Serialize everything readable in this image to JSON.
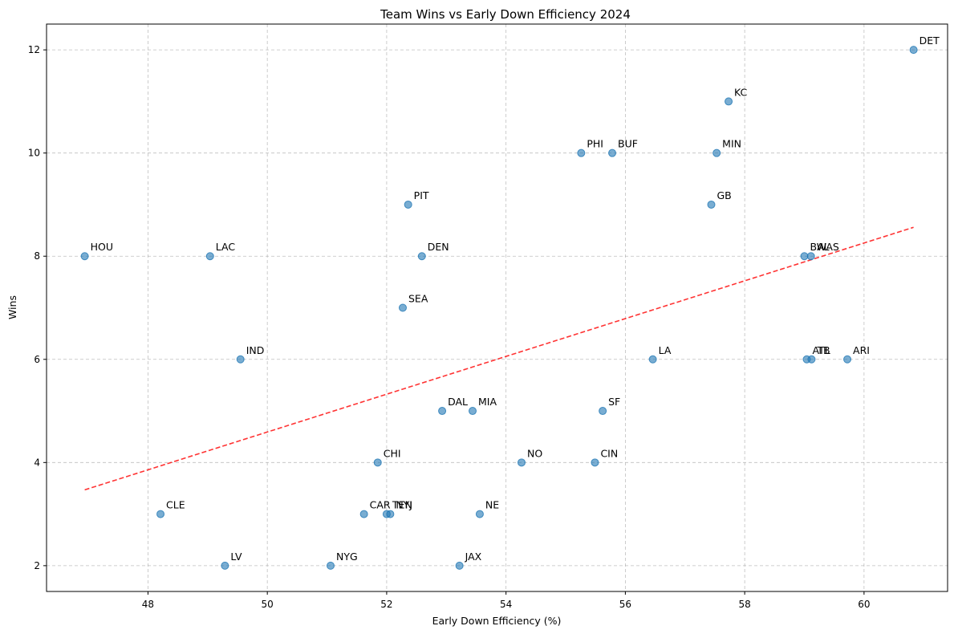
{
  "chart_data": {
    "type": "scatter",
    "title": "Team Wins vs Early Down Efficiency 2024",
    "xlabel": "Early Down Efficiency (%)",
    "ylabel": "Wins",
    "xlim": [
      46.3,
      61.4
    ],
    "ylim": [
      1.5,
      12.5
    ],
    "xticks": [
      48,
      50,
      52,
      54,
      56,
      58,
      60
    ],
    "yticks": [
      2,
      4,
      6,
      8,
      10,
      12
    ],
    "grid": true,
    "points": [
      {
        "team": "DET",
        "x": 60.83,
        "y": 12
      },
      {
        "team": "KC",
        "x": 57.73,
        "y": 11
      },
      {
        "team": "PHI",
        "x": 55.26,
        "y": 10
      },
      {
        "team": "BUF",
        "x": 55.78,
        "y": 10
      },
      {
        "team": "MIN",
        "x": 57.53,
        "y": 10
      },
      {
        "team": "PIT",
        "x": 52.36,
        "y": 9
      },
      {
        "team": "GB",
        "x": 57.44,
        "y": 9
      },
      {
        "team": "HOU",
        "x": 46.94,
        "y": 8
      },
      {
        "team": "LAC",
        "x": 49.04,
        "y": 8
      },
      {
        "team": "DEN",
        "x": 52.59,
        "y": 8
      },
      {
        "team": "BAL",
        "x": 59.0,
        "y": 8
      },
      {
        "team": "WAS",
        "x": 59.11,
        "y": 8
      },
      {
        "team": "SEA",
        "x": 52.27,
        "y": 7
      },
      {
        "team": "IND",
        "x": 49.55,
        "y": 6
      },
      {
        "team": "LA",
        "x": 56.46,
        "y": 6
      },
      {
        "team": "ATL",
        "x": 59.04,
        "y": 6
      },
      {
        "team": "TB",
        "x": 59.12,
        "y": 6
      },
      {
        "team": "ARI",
        "x": 59.72,
        "y": 6
      },
      {
        "team": "DAL",
        "x": 52.93,
        "y": 5
      },
      {
        "team": "MIA",
        "x": 53.44,
        "y": 5
      },
      {
        "team": "SF",
        "x": 55.62,
        "y": 5
      },
      {
        "team": "CHI",
        "x": 51.85,
        "y": 4
      },
      {
        "team": "NO",
        "x": 54.26,
        "y": 4
      },
      {
        "team": "CIN",
        "x": 55.49,
        "y": 4
      },
      {
        "team": "CLE",
        "x": 48.21,
        "y": 3
      },
      {
        "team": "CAR",
        "x": 51.62,
        "y": 3
      },
      {
        "team": "TEN",
        "x": 52.0,
        "y": 3
      },
      {
        "team": "NYJ",
        "x": 52.06,
        "y": 3
      },
      {
        "team": "NE",
        "x": 53.56,
        "y": 3
      },
      {
        "team": "LV",
        "x": 49.29,
        "y": 2
      },
      {
        "team": "NYG",
        "x": 51.06,
        "y": 2
      },
      {
        "team": "JAX",
        "x": 53.22,
        "y": 2
      }
    ],
    "trendline": {
      "x": [
        46.94,
        60.83
      ],
      "y": [
        3.47,
        8.56
      ]
    }
  }
}
